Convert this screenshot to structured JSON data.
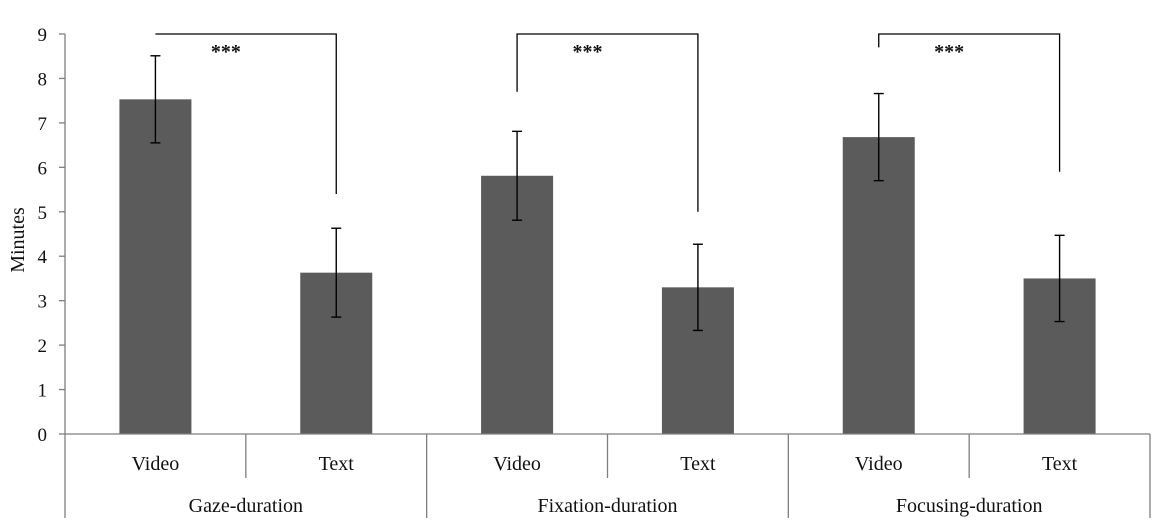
{
  "chart_data": {
    "type": "bar",
    "ylabel": "Minutes",
    "ylim": [
      0,
      9
    ],
    "yticks": [
      "0",
      "1",
      "2",
      "3",
      "4",
      "5",
      "6",
      "7",
      "8",
      "9"
    ],
    "grid": false,
    "legend": "none",
    "bar_color": "#5b5b5b",
    "groups": [
      {
        "name": "Gaze-duration",
        "significance": "***",
        "bars": [
          {
            "category": "Video",
            "value": 7.53,
            "error": 0.98
          },
          {
            "category": "Text",
            "value": 3.63,
            "error": 1.0
          }
        ]
      },
      {
        "name": "Fixation-duration",
        "significance": "***",
        "bars": [
          {
            "category": "Video",
            "value": 5.81,
            "error": 1.0
          },
          {
            "category": "Text",
            "value": 3.3,
            "error": 0.97
          }
        ]
      },
      {
        "name": "Focusing-duration",
        "significance": "***",
        "bars": [
          {
            "category": "Video",
            "value": 6.68,
            "error": 0.98
          },
          {
            "category": "Text",
            "value": 3.5,
            "error": 0.97
          }
        ]
      }
    ],
    "bracket_ends": [
      {
        "left": 9,
        "right": 5.4
      },
      {
        "left": 7.7,
        "right": 5.0
      },
      {
        "left": 8.7,
        "right": 5.9
      }
    ]
  }
}
